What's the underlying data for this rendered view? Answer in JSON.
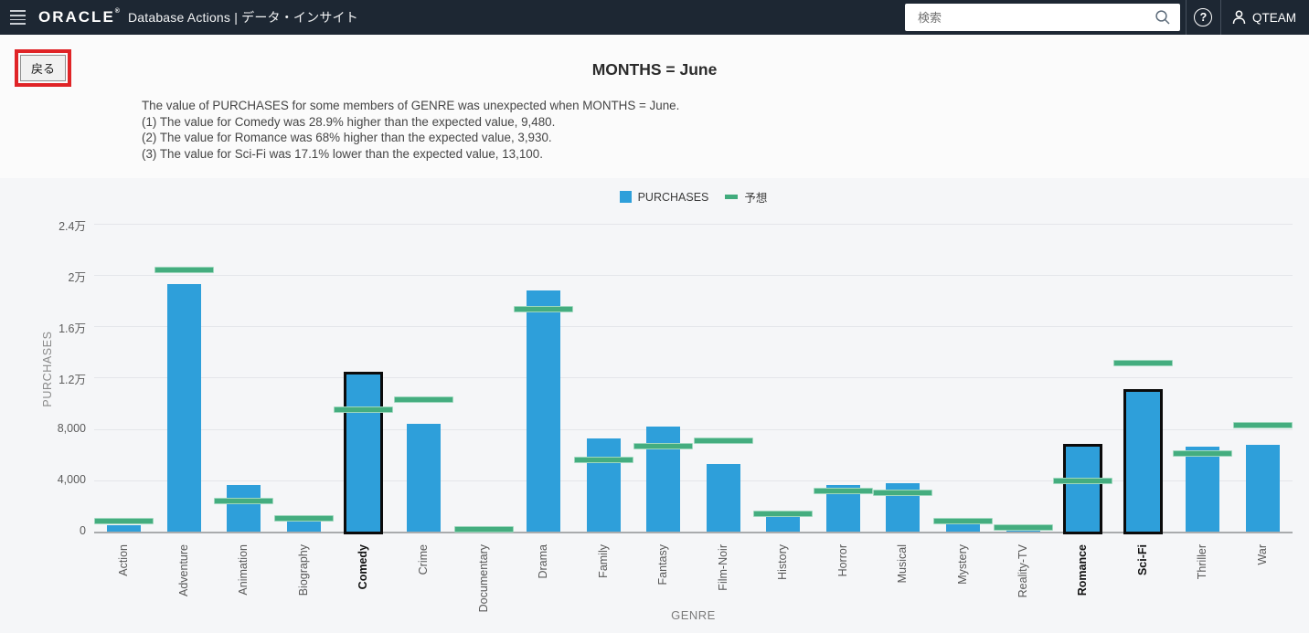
{
  "header": {
    "brand": "ORACLE",
    "brand_mark": "®",
    "app_title": "Database Actions | データ・インサイト",
    "search_placeholder": "検索",
    "help_glyph": "?",
    "user_label": "QTEAM"
  },
  "toolbar": {
    "back_label": "戻る"
  },
  "insight": {
    "title": "MONTHS = June",
    "lines": [
      "The value of PURCHASES for some members of GENRE was unexpected when MONTHS = June.",
      "(1) The value for Comedy was 28.9% higher than the expected value, 9,480.",
      "(2) The value for Romance was 68% higher than the expected value, 3,930.",
      "(3) The value for Sci-Fi was 17.1% lower than the expected value, 13,100."
    ]
  },
  "chart_data": {
    "type": "bar",
    "title": "MONTHS = June",
    "xlabel": "GENRE",
    "ylabel": "PURCHASES",
    "legend": [
      "PURCHASES",
      "予想"
    ],
    "legend_position": "top-center",
    "grid": true,
    "ylim": [
      0,
      25000
    ],
    "yticks": [
      {
        "value": 0,
        "label": "0"
      },
      {
        "value": 4000,
        "label": "4,000"
      },
      {
        "value": 8000,
        "label": "8,000"
      },
      {
        "value": 12000,
        "label": "1.2万"
      },
      {
        "value": 16000,
        "label": "1.6万"
      },
      {
        "value": 20000,
        "label": "2万"
      },
      {
        "value": 24000,
        "label": "2.4万"
      }
    ],
    "categories": [
      "Action",
      "Adventure",
      "Animation",
      "Biography",
      "Comedy",
      "Crime",
      "Documentary",
      "Drama",
      "Family",
      "Fantasy",
      "Film-Noir",
      "History",
      "Horror",
      "Musical",
      "Mystery",
      "Reality-TV",
      "Romance",
      "Sci-Fi",
      "Thriller",
      "War"
    ],
    "series": [
      {
        "name": "PURCHASES",
        "values": [
          500,
          19300,
          3650,
          1300,
          12220,
          8400,
          50,
          18800,
          7250,
          8200,
          5250,
          1200,
          3650,
          3800,
          550,
          100,
          6600,
          10860,
          6650,
          6750
        ]
      },
      {
        "name": "予想",
        "values": [
          800,
          20400,
          2400,
          1000,
          9480,
          10300,
          200,
          17300,
          5600,
          6650,
          7100,
          1400,
          3150,
          3050,
          800,
          300,
          3930,
          13100,
          6050,
          8300
        ]
      }
    ],
    "highlighted_categories": [
      "Comedy",
      "Romance",
      "Sci-Fi"
    ],
    "colors": {
      "bar": "#2e9fda",
      "expected": "#44ad7f",
      "highlight_outline": "#0b0b0b"
    }
  }
}
